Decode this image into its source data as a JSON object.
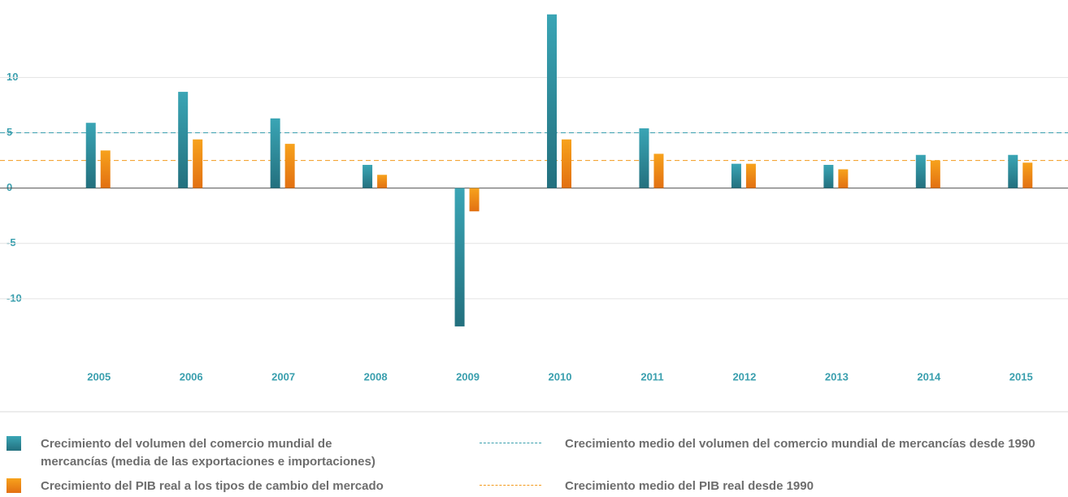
{
  "chart_data": {
    "type": "bar",
    "categories": [
      "2005",
      "2006",
      "2007",
      "2008",
      "2009",
      "2010",
      "2011",
      "2012",
      "2013",
      "2014",
      "2015"
    ],
    "series": [
      {
        "name": "Crecimiento del volumen del comercio mundial de mercancías (media de las exportaciones e importaciones)",
        "color": "#3a9fae",
        "values": [
          5.9,
          8.7,
          6.3,
          2.1,
          -12.5,
          15.7,
          5.4,
          2.2,
          2.1,
          3.0,
          3.0
        ]
      },
      {
        "name": "Crecimiento del PIB real a los tipos de cambio del mercado",
        "color": "#f39a1c",
        "values": [
          3.4,
          4.4,
          4.0,
          1.2,
          -2.1,
          4.4,
          3.1,
          2.2,
          1.7,
          2.5,
          2.3
        ]
      }
    ],
    "reference_lines": [
      {
        "name": "Crecimiento medio del volumen del comercio mundial de mercancías desde 1990",
        "color": "#3a9fae",
        "value": 5
      },
      {
        "name": "Crecimiento medio del PIB real desde 1990",
        "color": "#f39a1c",
        "value": 2.5
      }
    ],
    "ylim": [
      -15,
      17
    ],
    "yticks": [
      -10,
      -5,
      0,
      5,
      10
    ],
    "grid": true
  }
}
